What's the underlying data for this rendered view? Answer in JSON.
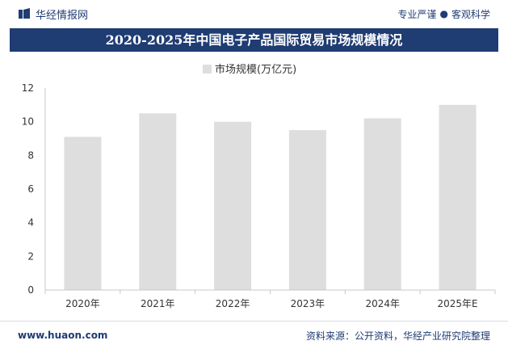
{
  "header": {
    "brand": "华经情报网",
    "tagline_left": "专业严谨",
    "tagline_sep": "●",
    "tagline_right": "客观科学",
    "title": "2020-2025年中国电子产品国际贸易市场规模情况"
  },
  "footer": {
    "url": "www.huaon.com",
    "source": "资料来源：公开资料，华经产业研究院整理"
  },
  "colors": {
    "brand": "#1f3c73",
    "bar": "#dedede",
    "axis": "#c8c8c8",
    "text": "#333333"
  },
  "chart_data": {
    "type": "bar",
    "title": "2020-2025年中国电子产品国际贸易市场规模情况",
    "xlabel": "",
    "ylabel": "",
    "categories": [
      "2020年",
      "2021年",
      "2022年",
      "2023年",
      "2024年",
      "2025年E"
    ],
    "series": [
      {
        "name": "市场规模(万亿元)",
        "values": [
          9.1,
          10.5,
          10.0,
          9.5,
          10.2,
          11.0
        ]
      }
    ],
    "ylim": [
      0,
      12
    ],
    "yticks": [
      0,
      2,
      4,
      6,
      8,
      10,
      12
    ],
    "legend_position": "top-center",
    "grid": false
  }
}
